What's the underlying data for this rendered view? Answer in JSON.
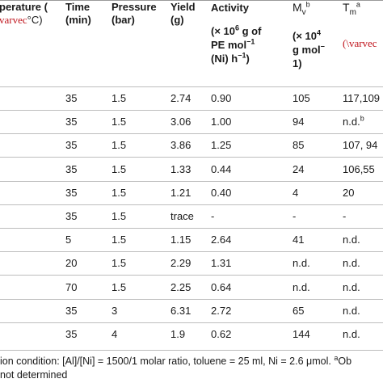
{
  "header": {
    "temp_line1": "perature (",
    "temp_line2_red": "varvec",
    "temp_line2_unit": "°C)",
    "time_line1": "Time",
    "time_line2": "(min)",
    "pressure_line1": "Pressure",
    "pressure_line2": "(bar)",
    "yield_line1": "Yield",
    "yield_line2": "(g)",
    "activity_line1": "Activity",
    "activity_line2_a": "(× 10",
    "activity_line2_sup": "6",
    "activity_line2_b": " g of",
    "activity_line3_a": "PE mol",
    "activity_line3_sup": "−1",
    "activity_line4_a": "(Ni) h",
    "activity_line4_sup": "−1",
    "activity_line4_b": ")",
    "mv_a": "M",
    "mv_sub": "v",
    "mv_sup": "b",
    "mv_line2_a": "(× 10",
    "mv_line2_sup": "4",
    "mv_line3_a": "g mol",
    "mv_line3_sup": "−",
    "mv_line4": "1",
    "mv_line4_b": ")",
    "tm_a": "T",
    "tm_sub": "m",
    "tm_sup": "a",
    "tm_line2_red": "(\\varvec"
  },
  "rows": [
    {
      "time": "35",
      "pressure": "1.5",
      "yield": "2.74",
      "activity": "0.90",
      "mv": "105",
      "tm": "117,109",
      "tm_sup": ""
    },
    {
      "time": "35",
      "pressure": "1.5",
      "yield": "3.06",
      "activity": "1.00",
      "mv": "94",
      "tm": "n.d.",
      "tm_sup": "b"
    },
    {
      "time": "35",
      "pressure": "1.5",
      "yield": "3.86",
      "activity": "1.25",
      "mv": "85",
      "tm": "107, 94",
      "tm_sup": ""
    },
    {
      "time": "35",
      "pressure": "1.5",
      "yield": "1.33",
      "activity": "0.44",
      "mv": "24",
      "tm": "106,55",
      "tm_sup": ""
    },
    {
      "time": "35",
      "pressure": "1.5",
      "yield": "1.21",
      "activity": "0.40",
      "mv": "4",
      "tm": "20",
      "tm_sup": ""
    },
    {
      "time": "35",
      "pressure": "1.5",
      "yield": "trace",
      "activity": "-",
      "mv": "-",
      "tm": "-",
      "tm_sup": ""
    },
    {
      "time": "5",
      "pressure": "1.5",
      "yield": "1.15",
      "activity": "2.64",
      "mv": "41",
      "tm": "n.d.",
      "tm_sup": ""
    },
    {
      "time": "20",
      "pressure": "1.5",
      "yield": "2.29",
      "activity": "1.31",
      "mv": "n.d.",
      "tm": "n.d.",
      "tm_sup": ""
    },
    {
      "time": "70",
      "pressure": "1.5",
      "yield": "2.25",
      "activity": "0.64",
      "mv": "n.d.",
      "tm": "n.d.",
      "tm_sup": ""
    },
    {
      "time": "35",
      "pressure": "3",
      "yield": "6.31",
      "activity": "2.72",
      "mv": "65",
      "tm": "n.d.",
      "tm_sup": ""
    },
    {
      "time": "35",
      "pressure": "4",
      "yield": "1.9",
      "activity": "0.62",
      "mv": "144",
      "tm": "n.d.",
      "tm_sup": ""
    }
  ],
  "footnote": {
    "line1_a": "ion condition: [Al]/[Ni] = 1500/1 molar ratio, toluene = 25 ml, Ni = 2.6 μmol. ",
    "line1_sup": "a",
    "line1_b": "Ob",
    "line2": "not determined"
  }
}
